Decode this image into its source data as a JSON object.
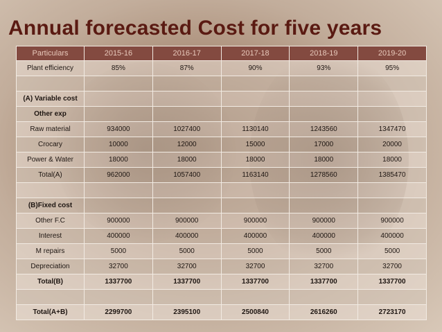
{
  "title": "Annual forecasted Cost for five years",
  "table": {
    "headers": [
      "Particulars",
      "2015-16",
      "2016-17",
      "2017-18",
      "2018-19",
      "2019-20"
    ],
    "rows": [
      {
        "label": "Plant efficiency",
        "values": [
          "85%",
          "87%",
          "90%",
          "93%",
          "95%"
        ],
        "bold": false
      },
      {
        "label": "",
        "values": [
          "",
          "",
          "",
          "",
          ""
        ],
        "bold": false
      },
      {
        "label": "(A) Variable cost",
        "values": [
          "",
          "",
          "",
          "",
          ""
        ],
        "bold": true
      },
      {
        "label": "Other exp",
        "values": [
          "",
          "",
          "",
          "",
          ""
        ],
        "bold": true
      },
      {
        "label": "Raw material",
        "values": [
          "934000",
          "1027400",
          "1130140",
          "1243560",
          "1347470"
        ],
        "bold": false
      },
      {
        "label": "Crocary",
        "values": [
          "10000",
          "12000",
          "15000",
          "17000",
          "20000"
        ],
        "bold": false
      },
      {
        "label": "Power & Water",
        "values": [
          "18000",
          "18000",
          "18000",
          "18000",
          "18000"
        ],
        "bold": false
      },
      {
        "label": "Total(A)",
        "values": [
          "962000",
          "1057400",
          "1163140",
          "1278560",
          "1385470"
        ],
        "bold": false
      },
      {
        "label": "",
        "values": [
          "",
          "",
          "",
          "",
          ""
        ],
        "bold": false
      },
      {
        "label": "(B)Fixed cost",
        "values": [
          "",
          "",
          "",
          "",
          ""
        ],
        "bold": true
      },
      {
        "label": "Other F.C",
        "values": [
          "900000",
          "900000",
          "900000",
          "900000",
          "900000"
        ],
        "bold": false
      },
      {
        "label": "Interest",
        "values": [
          "400000",
          "400000",
          "400000",
          "400000",
          "400000"
        ],
        "bold": false
      },
      {
        "label": "M repairs",
        "values": [
          "5000",
          "5000",
          "5000",
          "5000",
          "5000"
        ],
        "bold": false
      },
      {
        "label": "Depreciation",
        "values": [
          "32700",
          "32700",
          "32700",
          "32700",
          "32700"
        ],
        "bold": false
      },
      {
        "label": "Total(B)",
        "values": [
          "1337700",
          "1337700",
          "1337700",
          "1337700",
          "1337700"
        ],
        "bold": true
      },
      {
        "label": "",
        "values": [
          "",
          "",
          "",
          "",
          ""
        ],
        "bold": false
      },
      {
        "label": "Total(A+B)",
        "values": [
          "2299700",
          "2395100",
          "2500840",
          "2616260",
          "2723170"
        ],
        "bold": true
      }
    ]
  }
}
